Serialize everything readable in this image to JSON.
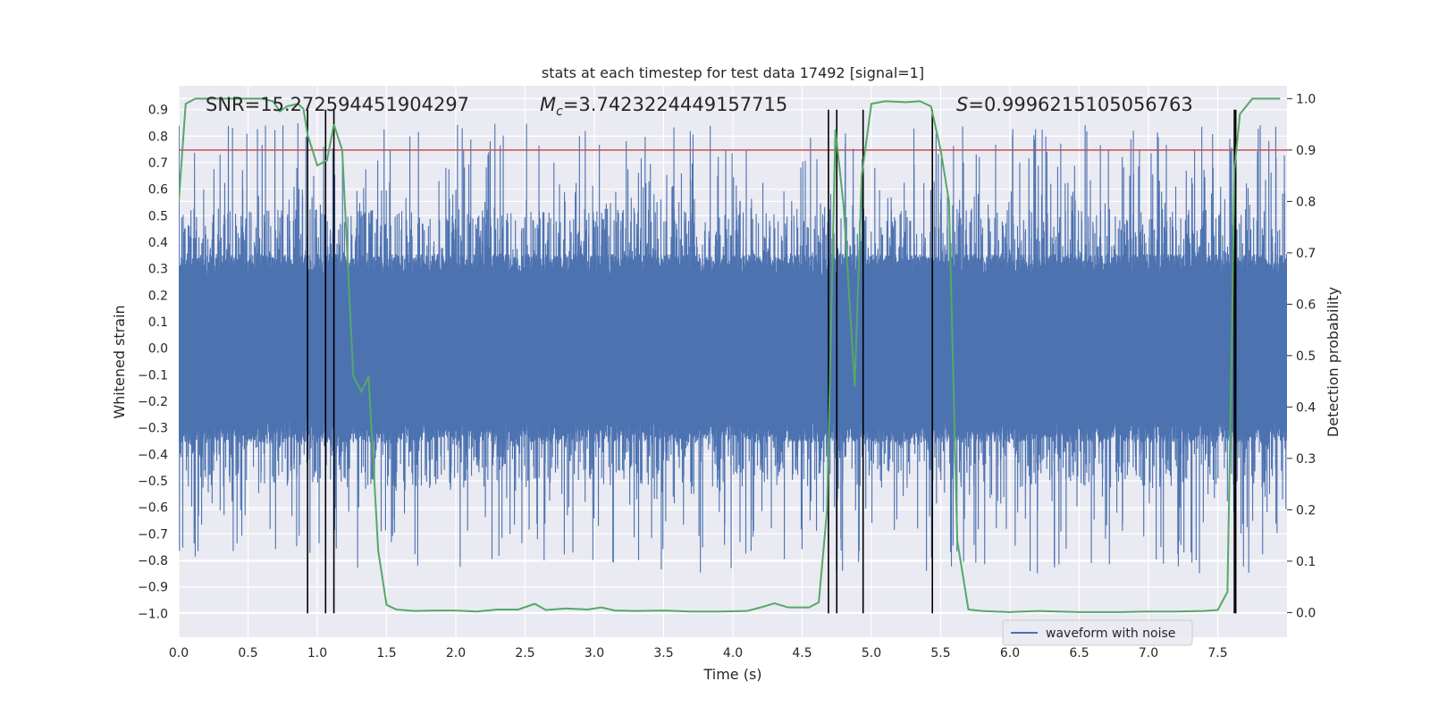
{
  "chart_data": {
    "type": "line",
    "title": "stats at each timestep for test data 17492 [signal=1]",
    "xlabel": "Time (s)",
    "ylabel": "Whitened strain",
    "y2label": "Detection probability",
    "xlim": [
      0.0,
      8.0
    ],
    "ylim": [
      -1.09,
      0.99
    ],
    "y2lim": [
      -0.048,
      1.025
    ],
    "xticks": [
      0.0,
      0.5,
      1.0,
      1.5,
      2.0,
      2.5,
      3.0,
      3.5,
      4.0,
      4.5,
      5.0,
      5.5,
      6.0,
      6.5,
      7.0,
      7.5
    ],
    "xtick_labels": [
      "0.0",
      "0.5",
      "1.0",
      "1.5",
      "2.0",
      "2.5",
      "3.0",
      "3.5",
      "4.0",
      "4.5",
      "5.0",
      "5.5",
      "6.0",
      "6.5",
      "7.0",
      "7.5"
    ],
    "yticks": [
      0.9,
      0.8,
      0.7,
      0.6,
      0.5,
      0.4,
      0.3,
      0.2,
      0.1,
      0.0,
      -0.1,
      -0.2,
      -0.3,
      -0.4,
      -0.5,
      -0.6,
      -0.7,
      -0.8,
      -0.9,
      -1.0
    ],
    "ytick_labels": [
      "0.9",
      "0.8",
      "0.7",
      "0.6",
      "0.5",
      "0.4",
      "0.3",
      "0.2",
      "0.1",
      "0.0",
      "−0.1",
      "−0.2",
      "−0.3",
      "−0.4",
      "−0.5",
      "−0.6",
      "−0.7",
      "−0.8",
      "−0.9",
      "−1.0"
    ],
    "y2ticks": [
      1.0,
      0.9,
      0.8,
      0.7,
      0.6,
      0.5,
      0.4,
      0.3,
      0.2,
      0.1,
      0.0
    ],
    "y2tick_labels": [
      "1.0",
      "0.9",
      "0.8",
      "0.7",
      "0.6",
      "0.5",
      "0.4",
      "0.3",
      "0.2",
      "0.1",
      "0.0"
    ],
    "grid": true,
    "annotations": {
      "snr": "SNR=15.272594451904297",
      "mc_symbol": "M",
      "mc_sub": "c",
      "mc_value": "=3.7423224449157715",
      "s_symbol": "S",
      "s_value": "=0.9996215105056763"
    },
    "legend": {
      "placement": "lower-right",
      "entries": [
        "waveform with noise"
      ]
    },
    "series": [
      {
        "name": "waveform with noise",
        "color": "#4c72b0",
        "description_values": "noisy whitened strain, core band approx ±0.31, peaks up to ±0.85",
        "core_amplitude": 0.31,
        "peak_amplitude": 0.85,
        "n_samples": 8000,
        "seed": 17492
      },
      {
        "axis": "y2",
        "color": "#55a868",
        "x": [
          0.0,
          0.05,
          0.12,
          0.2,
          0.3,
          0.4,
          0.5,
          0.6,
          0.68,
          0.73,
          0.78,
          0.86,
          0.9,
          0.93,
          1.0,
          1.07,
          1.12,
          1.18,
          1.26,
          1.32,
          1.37,
          1.44,
          1.5,
          1.57,
          1.7,
          1.85,
          2.0,
          2.15,
          2.3,
          2.45,
          2.57,
          2.65,
          2.8,
          2.95,
          3.05,
          3.15,
          3.3,
          3.5,
          3.7,
          3.9,
          4.1,
          4.2,
          4.3,
          4.4,
          4.55,
          4.62,
          4.68,
          4.74,
          4.8,
          4.88,
          4.93,
          5.0,
          5.1,
          5.25,
          5.35,
          5.43,
          5.5,
          5.56,
          5.62,
          5.7,
          5.8,
          6.0,
          6.2,
          6.5,
          6.8,
          7.0,
          7.2,
          7.4,
          7.5,
          7.57,
          7.6,
          7.62,
          7.66,
          7.75,
          7.85,
          7.95
        ],
        "values": [
          0.8,
          0.99,
          1.0,
          1.0,
          1.0,
          1.0,
          1.0,
          1.0,
          0.995,
          0.975,
          0.985,
          0.99,
          0.98,
          0.93,
          0.87,
          0.88,
          0.95,
          0.9,
          0.46,
          0.43,
          0.46,
          0.12,
          0.015,
          0.006,
          0.003,
          0.004,
          0.004,
          0.002,
          0.006,
          0.006,
          0.017,
          0.005,
          0.008,
          0.006,
          0.01,
          0.004,
          0.003,
          0.004,
          0.002,
          0.002,
          0.003,
          0.01,
          0.018,
          0.01,
          0.01,
          0.02,
          0.2,
          0.94,
          0.79,
          0.44,
          0.85,
          0.99,
          0.995,
          0.993,
          0.995,
          0.985,
          0.9,
          0.8,
          0.14,
          0.006,
          0.003,
          0.001,
          0.003,
          0.001,
          0.001,
          0.002,
          0.002,
          0.003,
          0.005,
          0.04,
          0.5,
          0.86,
          0.97,
          1.0,
          1.0,
          1.0
        ]
      }
    ],
    "threshold": {
      "axis": "y2",
      "value": 0.9,
      "color": "#c44e52"
    },
    "vlines": {
      "color": "#000000",
      "x": [
        0.93,
        1.06,
        1.12,
        4.69,
        4.75,
        4.94,
        5.44,
        7.62,
        7.63
      ],
      "ymin": -1.0,
      "ymax": 0.9
    }
  }
}
